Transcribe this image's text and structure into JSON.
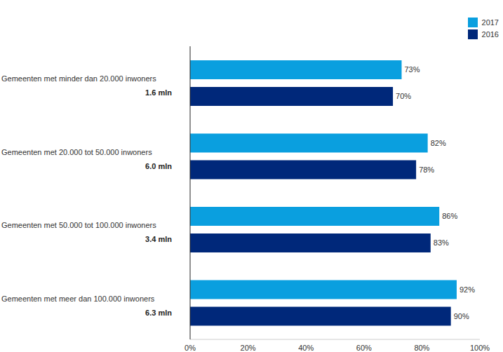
{
  "chart_data": {
    "type": "bar",
    "orientation": "horizontal",
    "categories": [
      "Gemeenten met minder dan 20.000 inwoners\n1.6 mln",
      "Gemeenten met 20.000 tot 50.000 inwoners\n6.0 mln",
      "Gemeenten met 50.000 tot 100.000 inwoners\n3.4 mln",
      "Gemeenten met meer dan 100.000 inwoners\n6.3 mln"
    ],
    "series": [
      {
        "name": "2017",
        "color": "#0a9fdf",
        "values": [
          73,
          82,
          86,
          92
        ],
        "value_labels": [
          "73%",
          "82%",
          "86%",
          "92%"
        ]
      },
      {
        "name": "2016",
        "color": "#00287a",
        "values": [
          70,
          78,
          83,
          90
        ],
        "value_labels": [
          "70%",
          "78%",
          "83%",
          "90%"
        ]
      }
    ],
    "xlim": [
      0,
      100
    ],
    "xticks": [
      {
        "value": 0,
        "label": "0%"
      },
      {
        "value": 20,
        "label": "20%"
      },
      {
        "value": 40,
        "label": "40%"
      },
      {
        "value": 60,
        "label": "60%"
      },
      {
        "value": 80,
        "label": "80%"
      },
      {
        "value": 100,
        "label": "100%"
      }
    ],
    "data_labels": true,
    "grid": false,
    "legend": "top-right"
  }
}
